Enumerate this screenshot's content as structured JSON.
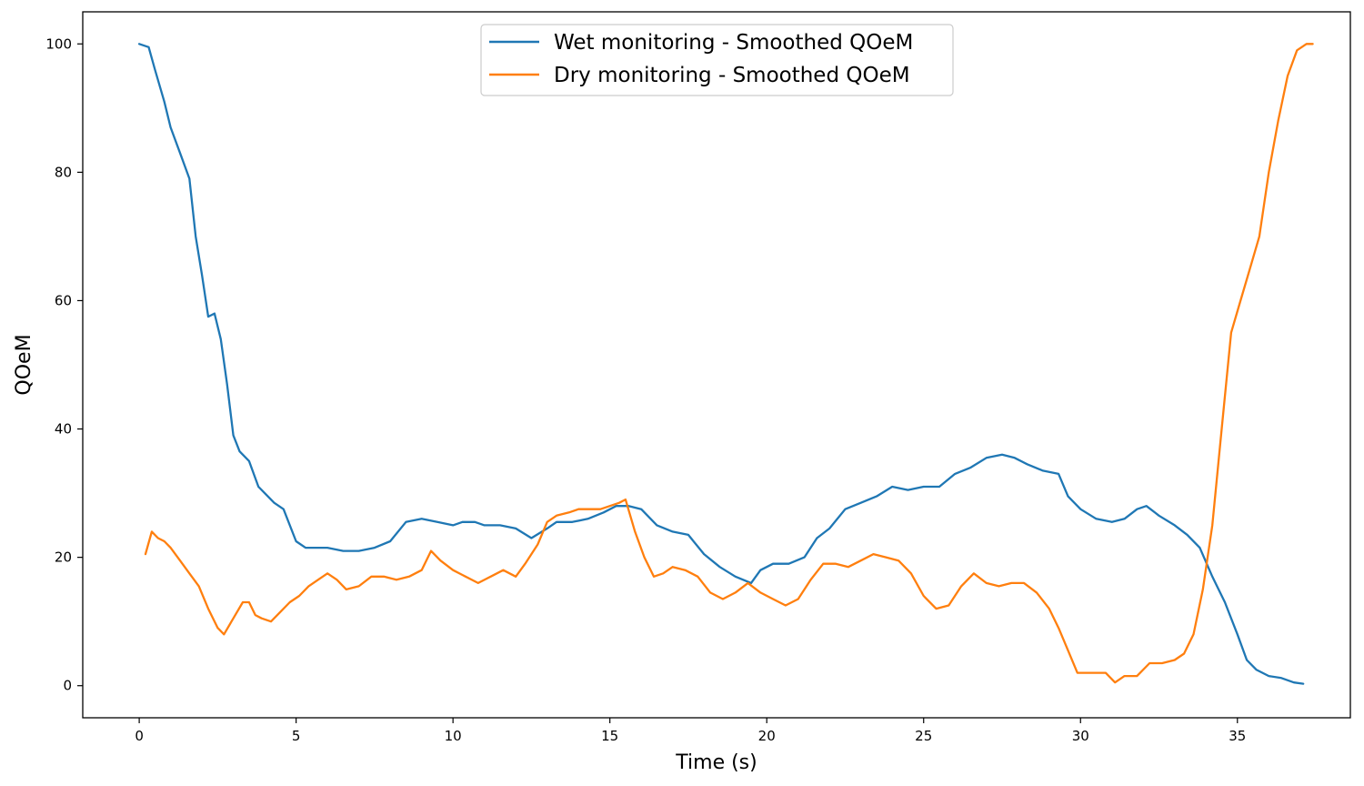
{
  "chart_data": {
    "type": "line",
    "xlabel": "Time (s)",
    "ylabel": "QOeM",
    "xlim": [
      -1.8,
      38.6
    ],
    "ylim": [
      -5,
      105
    ],
    "xticks": [
      0,
      5,
      10,
      15,
      20,
      25,
      30,
      35
    ],
    "yticks": [
      0,
      20,
      40,
      60,
      80,
      100
    ],
    "grid": false,
    "legend_position": "top-center",
    "series": [
      {
        "name": "Wet monitoring - Smoothed QOeM",
        "color": "#1f77b4",
        "x": [
          0.0,
          0.3,
          0.5,
          0.8,
          1.0,
          1.3,
          1.6,
          1.8,
          2.0,
          2.2,
          2.4,
          2.6,
          2.8,
          3.0,
          3.2,
          3.5,
          3.8,
          4.0,
          4.3,
          4.6,
          5.0,
          5.3,
          5.6,
          6.0,
          6.5,
          7.0,
          7.5,
          8.0,
          8.5,
          9.0,
          9.5,
          10.0,
          10.3,
          10.7,
          11.0,
          11.5,
          12.0,
          12.5,
          13.0,
          13.3,
          13.8,
          14.3,
          14.8,
          15.2,
          15.6,
          16.0,
          16.5,
          17.0,
          17.5,
          18.0,
          18.5,
          19.0,
          19.5,
          19.8,
          20.2,
          20.7,
          21.2,
          21.6,
          22.0,
          22.5,
          23.0,
          23.5,
          24.0,
          24.5,
          25.0,
          25.5,
          26.0,
          26.5,
          27.0,
          27.5,
          27.9,
          28.3,
          28.8,
          29.3,
          29.6,
          30.0,
          30.5,
          31.0,
          31.4,
          31.8,
          32.1,
          32.5,
          33.0,
          33.4,
          33.8,
          34.2,
          34.6,
          35.0,
          35.3,
          35.6,
          36.0,
          36.4,
          36.8,
          37.1
        ],
        "values": [
          100,
          99.5,
          96,
          91,
          87,
          83,
          79,
          70,
          64,
          57.5,
          58,
          54,
          47,
          39,
          36.5,
          35,
          31,
          30,
          28.5,
          27.5,
          22.5,
          21.5,
          21.5,
          21.5,
          21,
          21,
          21.5,
          22.5,
          25.5,
          26,
          25.5,
          25,
          25.5,
          25.5,
          25,
          25,
          24.5,
          23,
          24.5,
          25.5,
          25.5,
          26,
          27,
          28,
          28,
          27.5,
          25,
          24,
          23.5,
          20.5,
          18.5,
          17,
          16,
          18,
          19,
          19,
          20,
          23,
          24.5,
          27.5,
          28.5,
          29.5,
          31,
          30.5,
          31,
          31,
          33,
          34,
          35.5,
          36,
          35.5,
          34.5,
          33.5,
          33,
          29.5,
          27.5,
          26,
          25.5,
          26,
          27.5,
          28,
          26.5,
          25,
          23.5,
          21.5,
          17,
          13,
          8,
          4,
          2.5,
          1.5,
          1.2,
          0.5,
          0.3
        ]
      },
      {
        "name": "Dry monitoring - Smoothed QOeM",
        "color": "#ff7f0e",
        "x": [
          0.2,
          0.4,
          0.6,
          0.8,
          1.0,
          1.3,
          1.6,
          1.9,
          2.2,
          2.5,
          2.7,
          3.0,
          3.3,
          3.5,
          3.7,
          3.9,
          4.2,
          4.5,
          4.8,
          5.1,
          5.4,
          5.7,
          6.0,
          6.3,
          6.6,
          7.0,
          7.4,
          7.8,
          8.2,
          8.6,
          9.0,
          9.3,
          9.6,
          10.0,
          10.4,
          10.8,
          11.2,
          11.6,
          12.0,
          12.3,
          12.7,
          13.0,
          13.3,
          13.7,
          14.0,
          14.3,
          14.7,
          15.0,
          15.3,
          15.5,
          15.8,
          16.1,
          16.4,
          16.7,
          17.0,
          17.4,
          17.8,
          18.2,
          18.6,
          19.0,
          19.4,
          19.8,
          20.2,
          20.6,
          21.0,
          21.4,
          21.8,
          22.2,
          22.6,
          23.0,
          23.4,
          23.8,
          24.2,
          24.6,
          25.0,
          25.4,
          25.8,
          26.2,
          26.6,
          27.0,
          27.4,
          27.8,
          28.2,
          28.6,
          29.0,
          29.3,
          29.6,
          29.9,
          30.2,
          30.5,
          30.8,
          31.1,
          31.4,
          31.8,
          32.2,
          32.6,
          33.0,
          33.3,
          33.6,
          33.9,
          34.2,
          34.5,
          34.8,
          35.1,
          35.4,
          35.7,
          36.0,
          36.3,
          36.6,
          36.9,
          37.2,
          37.4
        ],
        "values": [
          20.5,
          24,
          23,
          22.5,
          21.5,
          19.5,
          17.5,
          15.5,
          12,
          9,
          8,
          10.5,
          13,
          13,
          11,
          10.5,
          10,
          11.5,
          13,
          14,
          15.5,
          16.5,
          17.5,
          16.5,
          15,
          15.5,
          17,
          17,
          16.5,
          17,
          18,
          21,
          19.5,
          18,
          17,
          16,
          17,
          18,
          17,
          19,
          22,
          25.5,
          26.5,
          27,
          27.5,
          27.5,
          27.5,
          28,
          28.5,
          29,
          24,
          20,
          17,
          17.5,
          18.5,
          18,
          17,
          14.5,
          13.5,
          14.5,
          16,
          14.5,
          13.5,
          12.5,
          13.5,
          16.5,
          19,
          19,
          18.5,
          19.5,
          20.5,
          20,
          19.5,
          17.5,
          14,
          12,
          12.5,
          15.5,
          17.5,
          16,
          15.5,
          16,
          16,
          14.5,
          12,
          9,
          5.5,
          2,
          2,
          2,
          2,
          0.5,
          1.5,
          1.5,
          3.5,
          3.5,
          4,
          5,
          8,
          15,
          25,
          40,
          55,
          60,
          65,
          70,
          80,
          88,
          95,
          99,
          100,
          100
        ]
      }
    ]
  }
}
